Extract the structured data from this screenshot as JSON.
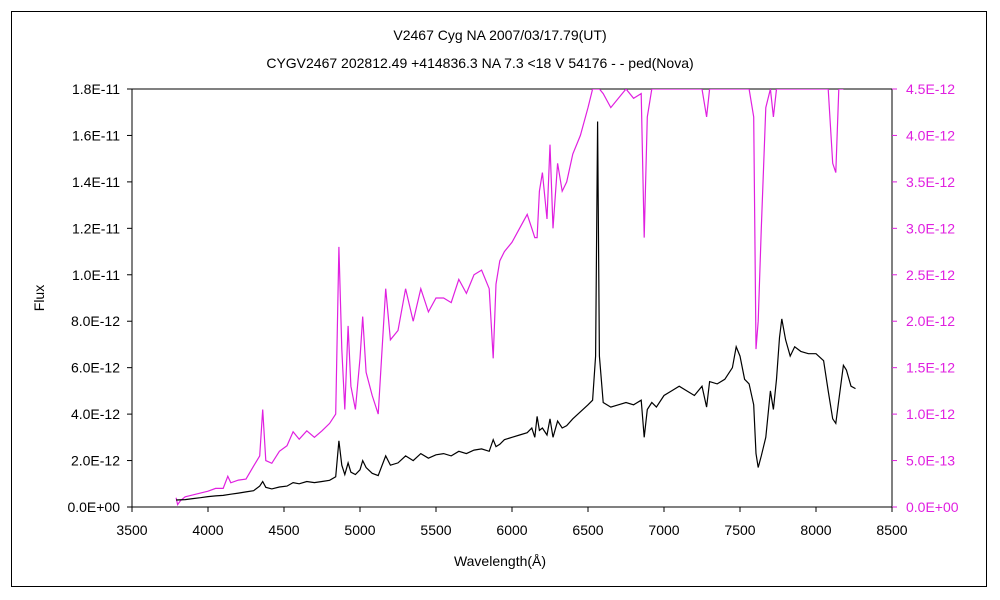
{
  "chart_data": {
    "type": "line",
    "title": "V2467 Cyg    NA    2007/03/17.79(UT)",
    "subtitle": "CYGV2467 202812.49 +414836.3 NA 7.3 <18 V 54176 - - ped(Nova)",
    "xlabel": "Wavelength(Å)",
    "ylabel": "Flux",
    "xlim": [
      3500,
      8500
    ],
    "ylim": [
      0,
      1.8e-11
    ],
    "y2lim": [
      0,
      4.5e-12
    ],
    "x_ticks": [
      "3500",
      "4000",
      "4500",
      "5000",
      "5500",
      "6000",
      "6500",
      "7000",
      "7500",
      "8000",
      "8500"
    ],
    "y_ticks": [
      "0.0E+00",
      "2.0E-12",
      "4.0E-12",
      "6.0E-12",
      "8.0E-12",
      "1.0E-11",
      "1.2E-11",
      "1.4E-11",
      "1.6E-11",
      "1.8E-11"
    ],
    "y2_ticks": [
      "0.0E+00",
      "5.0E-13",
      "1.0E-12",
      "1.5E-12",
      "2.0E-12",
      "2.5E-12",
      "3.0E-12",
      "3.5E-12",
      "4.0E-12",
      "4.5E-12"
    ],
    "grid": false,
    "colors": {
      "primary": "#000000",
      "secondary": "#e020e0"
    },
    "series": [
      {
        "axis": "left",
        "color": "#000000",
        "points": [
          [
            3790,
            3e-13
          ],
          [
            3850,
            3.2e-13
          ],
          [
            3900,
            3.6e-13
          ],
          [
            3950,
            4e-13
          ],
          [
            4000,
            4.5e-13
          ],
          [
            4050,
            4.8e-13
          ],
          [
            4100,
            5e-13
          ],
          [
            4150,
            5.5e-13
          ],
          [
            4200,
            6e-13
          ],
          [
            4250,
            6.5e-13
          ],
          [
            4300,
            7e-13
          ],
          [
            4340,
            9e-13
          ],
          [
            4360,
            1.1e-12
          ],
          [
            4380,
            8.5e-13
          ],
          [
            4420,
            7.8e-13
          ],
          [
            4470,
            8.6e-13
          ],
          [
            4520,
            9e-13
          ],
          [
            4560,
            1.05e-12
          ],
          [
            4600,
            1e-12
          ],
          [
            4650,
            1.1e-12
          ],
          [
            4700,
            1.05e-12
          ],
          [
            4750,
            1.1e-12
          ],
          [
            4800,
            1.15e-12
          ],
          [
            4840,
            1.3e-12
          ],
          [
            4861,
            2.85e-12
          ],
          [
            4880,
            1.8e-12
          ],
          [
            4900,
            1.4e-12
          ],
          [
            4922,
            1.9e-12
          ],
          [
            4940,
            1.5e-12
          ],
          [
            4970,
            1.4e-12
          ],
          [
            5000,
            1.6e-12
          ],
          [
            5018,
            2e-12
          ],
          [
            5040,
            1.7e-12
          ],
          [
            5080,
            1.45e-12
          ],
          [
            5120,
            1.35e-12
          ],
          [
            5169,
            2.2e-12
          ],
          [
            5200,
            1.8e-12
          ],
          [
            5250,
            1.9e-12
          ],
          [
            5300,
            2.2e-12
          ],
          [
            5350,
            2e-12
          ],
          [
            5400,
            2.3e-12
          ],
          [
            5450,
            2.1e-12
          ],
          [
            5500,
            2.25e-12
          ],
          [
            5550,
            2.3e-12
          ],
          [
            5600,
            2.2e-12
          ],
          [
            5650,
            2.4e-12
          ],
          [
            5700,
            2.3e-12
          ],
          [
            5750,
            2.45e-12
          ],
          [
            5800,
            2.5e-12
          ],
          [
            5850,
            2.4e-12
          ],
          [
            5876,
            2.9e-12
          ],
          [
            5895,
            2.6e-12
          ],
          [
            5920,
            2.7e-12
          ],
          [
            5950,
            2.9e-12
          ],
          [
            6000,
            3e-12
          ],
          [
            6050,
            3.1e-12
          ],
          [
            6100,
            3.2e-12
          ],
          [
            6130,
            3.4e-12
          ],
          [
            6150,
            3e-12
          ],
          [
            6165,
            3.9e-12
          ],
          [
            6180,
            3.3e-12
          ],
          [
            6200,
            3.4e-12
          ],
          [
            6230,
            3.1e-12
          ],
          [
            6250,
            3.8e-12
          ],
          [
            6270,
            3e-12
          ],
          [
            6300,
            3.7e-12
          ],
          [
            6330,
            3.4e-12
          ],
          [
            6360,
            3.5e-12
          ],
          [
            6400,
            3.8e-12
          ],
          [
            6450,
            4.1e-12
          ],
          [
            6500,
            4.4e-12
          ],
          [
            6530,
            4.6e-12
          ],
          [
            6550,
            6.5e-12
          ],
          [
            6563,
            1.66e-11
          ],
          [
            6575,
            6.5e-12
          ],
          [
            6600,
            4.5e-12
          ],
          [
            6650,
            4.3e-12
          ],
          [
            6700,
            4.4e-12
          ],
          [
            6750,
            4.5e-12
          ],
          [
            6800,
            4.4e-12
          ],
          [
            6850,
            4.6e-12
          ],
          [
            6870,
            3e-12
          ],
          [
            6890,
            4.2e-12
          ],
          [
            6920,
            4.5e-12
          ],
          [
            6950,
            4.3e-12
          ],
          [
            7000,
            4.8e-12
          ],
          [
            7050,
            5e-12
          ],
          [
            7100,
            5.2e-12
          ],
          [
            7150,
            5e-12
          ],
          [
            7200,
            4.8e-12
          ],
          [
            7250,
            5.2e-12
          ],
          [
            7280,
            4.3e-12
          ],
          [
            7300,
            5.4e-12
          ],
          [
            7350,
            5.3e-12
          ],
          [
            7400,
            5.5e-12
          ],
          [
            7450,
            6e-12
          ],
          [
            7475,
            6.9e-12
          ],
          [
            7500,
            6.5e-12
          ],
          [
            7530,
            5.5e-12
          ],
          [
            7560,
            5.3e-12
          ],
          [
            7590,
            4.4e-12
          ],
          [
            7605,
            2.3e-12
          ],
          [
            7620,
            1.7e-12
          ],
          [
            7640,
            2.2e-12
          ],
          [
            7670,
            3e-12
          ],
          [
            7700,
            5e-12
          ],
          [
            7720,
            4.2e-12
          ],
          [
            7740,
            5.5e-12
          ],
          [
            7760,
            7.3e-12
          ],
          [
            7775,
            8.1e-12
          ],
          [
            7800,
            7.2e-12
          ],
          [
            7830,
            6.5e-12
          ],
          [
            7860,
            6.9e-12
          ],
          [
            7900,
            6.7e-12
          ],
          [
            7950,
            6.6e-12
          ],
          [
            8000,
            6.6e-12
          ],
          [
            8050,
            6.3e-12
          ],
          [
            8080,
            5e-12
          ],
          [
            8110,
            3.8e-12
          ],
          [
            8130,
            3.6e-12
          ],
          [
            8150,
            4.6e-12
          ],
          [
            8180,
            6.1e-12
          ],
          [
            8200,
            5.9e-12
          ],
          [
            8230,
            5.2e-12
          ],
          [
            8260,
            5.1e-12
          ]
        ]
      },
      {
        "axis": "right",
        "color": "#e020e0",
        "points": [
          [
            3790,
            1e-13
          ],
          [
            3800,
            2.6e-14
          ],
          [
            3820,
            7e-14
          ],
          [
            3850,
            1.1e-13
          ],
          [
            3900,
            1.3e-13
          ],
          [
            3950,
            1.5e-13
          ],
          [
            4000,
            1.7e-13
          ],
          [
            4050,
            2e-13
          ],
          [
            4100,
            2e-13
          ],
          [
            4130,
            3.3e-13
          ],
          [
            4150,
            2.6e-13
          ],
          [
            4200,
            2.9e-13
          ],
          [
            4250,
            3e-13
          ],
          [
            4300,
            4.4e-13
          ],
          [
            4340,
            5.5e-13
          ],
          [
            4360,
            1.05e-12
          ],
          [
            4380,
            5e-13
          ],
          [
            4420,
            4.7e-13
          ],
          [
            4470,
            6e-13
          ],
          [
            4520,
            6.6e-13
          ],
          [
            4560,
            8.1e-13
          ],
          [
            4600,
            7.3e-13
          ],
          [
            4650,
            8.2e-13
          ],
          [
            4700,
            7.5e-13
          ],
          [
            4750,
            8.2e-13
          ],
          [
            4800,
            9e-13
          ],
          [
            4840,
            1e-12
          ],
          [
            4861,
            2.8e-12
          ],
          [
            4880,
            1.7e-12
          ],
          [
            4900,
            1.05e-12
          ],
          [
            4922,
            1.95e-12
          ],
          [
            4940,
            1.3e-12
          ],
          [
            4970,
            1.05e-12
          ],
          [
            5000,
            1.6e-12
          ],
          [
            5018,
            2.05e-12
          ],
          [
            5040,
            1.45e-12
          ],
          [
            5080,
            1.2e-12
          ],
          [
            5120,
            1e-12
          ],
          [
            5169,
            2.35e-12
          ],
          [
            5200,
            1.8e-12
          ],
          [
            5250,
            1.9e-12
          ],
          [
            5300,
            2.35e-12
          ],
          [
            5350,
            2e-12
          ],
          [
            5400,
            2.35e-12
          ],
          [
            5450,
            2.1e-12
          ],
          [
            5500,
            2.25e-12
          ],
          [
            5550,
            2.25e-12
          ],
          [
            5600,
            2.2e-12
          ],
          [
            5650,
            2.45e-12
          ],
          [
            5700,
            2.3e-12
          ],
          [
            5750,
            2.5e-12
          ],
          [
            5800,
            2.55e-12
          ],
          [
            5850,
            2.35e-12
          ],
          [
            5876,
            1.6e-12
          ],
          [
            5895,
            2.4e-12
          ],
          [
            5920,
            2.65e-12
          ],
          [
            5950,
            2.75e-12
          ],
          [
            6000,
            2.85e-12
          ],
          [
            6050,
            3e-12
          ],
          [
            6100,
            3.15e-12
          ],
          [
            6130,
            3e-12
          ],
          [
            6150,
            2.9e-12
          ],
          [
            6165,
            2.9e-12
          ],
          [
            6180,
            3.4e-12
          ],
          [
            6200,
            3.6e-12
          ],
          [
            6230,
            3.1e-12
          ],
          [
            6250,
            3.9e-12
          ],
          [
            6270,
            3e-12
          ],
          [
            6300,
            3.7e-12
          ],
          [
            6330,
            3.4e-12
          ],
          [
            6360,
            3.5e-12
          ],
          [
            6400,
            3.8e-12
          ],
          [
            6450,
            4e-12
          ],
          [
            6500,
            4.3e-12
          ],
          [
            6530,
            4.5e-12
          ],
          [
            6550,
            4.5e-12
          ],
          [
            6563,
            4.5e-12
          ],
          [
            6575,
            4.5e-12
          ],
          [
            6600,
            4.45e-12
          ],
          [
            6650,
            4.3e-12
          ],
          [
            6700,
            4.4e-12
          ],
          [
            6750,
            4.5e-12
          ],
          [
            6800,
            4.4e-12
          ],
          [
            6850,
            4.45e-12
          ],
          [
            6870,
            2.9e-12
          ],
          [
            6890,
            4.2e-12
          ],
          [
            6920,
            4.5e-12
          ],
          [
            6950,
            4.5e-12
          ],
          [
            7000,
            4.5e-12
          ],
          [
            7050,
            4.5e-12
          ],
          [
            7100,
            4.5e-12
          ],
          [
            7150,
            4.5e-12
          ],
          [
            7200,
            4.5e-12
          ],
          [
            7250,
            4.5e-12
          ],
          [
            7280,
            4.2e-12
          ],
          [
            7300,
            4.5e-12
          ],
          [
            7350,
            4.5e-12
          ],
          [
            7400,
            4.5e-12
          ],
          [
            7450,
            4.5e-12
          ],
          [
            7475,
            4.5e-12
          ],
          [
            7500,
            4.5e-12
          ],
          [
            7530,
            4.5e-12
          ],
          [
            7560,
            4.5e-12
          ],
          [
            7590,
            4.2e-12
          ],
          [
            7605,
            1.7e-12
          ],
          [
            7620,
            2e-12
          ],
          [
            7640,
            3e-12
          ],
          [
            7670,
            4.3e-12
          ],
          [
            7700,
            4.5e-12
          ],
          [
            7720,
            4.2e-12
          ],
          [
            7740,
            4.5e-12
          ],
          [
            7760,
            4.5e-12
          ],
          [
            7775,
            4.5e-12
          ],
          [
            7800,
            4.5e-12
          ],
          [
            7830,
            4.5e-12
          ],
          [
            7860,
            4.5e-12
          ],
          [
            7900,
            4.5e-12
          ],
          [
            7950,
            4.5e-12
          ],
          [
            8000,
            4.5e-12
          ],
          [
            8050,
            4.5e-12
          ],
          [
            8080,
            4.5e-12
          ],
          [
            8110,
            3.7e-12
          ],
          [
            8130,
            3.6e-12
          ],
          [
            8150,
            4.5e-12
          ],
          [
            8180,
            4.5e-12
          ]
        ]
      }
    ]
  }
}
